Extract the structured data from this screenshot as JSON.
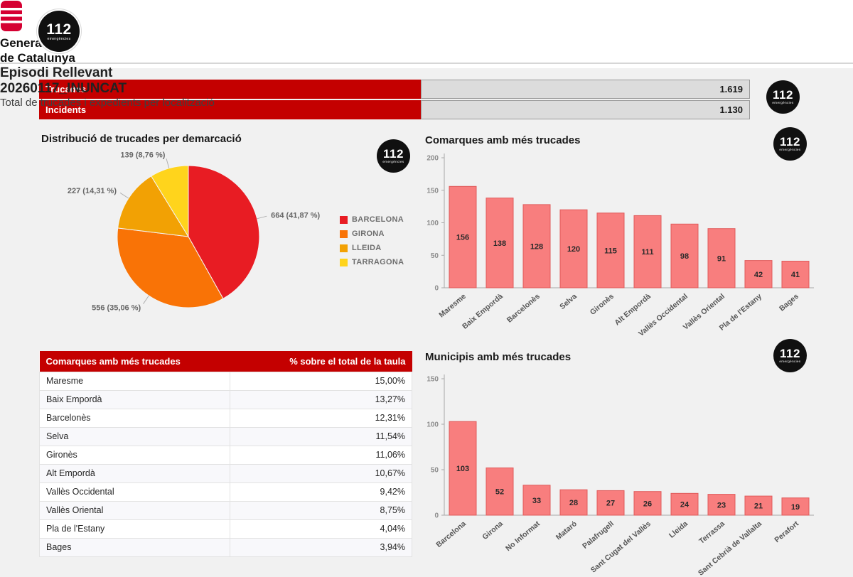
{
  "logo": {
    "number": "112",
    "caption": "emergències"
  },
  "header": {
    "org_line1": "Generalitat",
    "org_line2": "de Catalunya",
    "title": "Episodi Rellevant",
    "episode_code": "20260117_INUNCAT",
    "subtitle": "Total de trucades i expedients per localització"
  },
  "summary": {
    "rows": [
      {
        "label": "Trucades",
        "value": "1.619"
      },
      {
        "label": "Incidents",
        "value": "1.130"
      }
    ]
  },
  "chart_data": [
    {
      "type": "pie",
      "title": "Distribució de trucades per demarcació",
      "labels": [
        "BARCELONA",
        "GIRONA",
        "LLEIDA",
        "TARRAGONA"
      ],
      "values": [
        664,
        556,
        227,
        139
      ],
      "data_labels": [
        "664 (41,87 %)",
        "556 (35,06 %)",
        "227 (14,31 %)",
        "139 (8,76 %)"
      ],
      "colors": [
        "#e81c23",
        "#f97306",
        "#f2a104",
        "#ffd41c"
      ],
      "legend_position": "right"
    },
    {
      "type": "bar",
      "title": "Comarques amb més trucades",
      "categories": [
        "Maresme",
        "Baix Empordà",
        "Barcelonès",
        "Selva",
        "Gironès",
        "Alt Empordà",
        "Vallès Occidental",
        "Vallès Oriental",
        "Pla de l'Estany",
        "Bages"
      ],
      "values": [
        156,
        138,
        128,
        120,
        115,
        111,
        98,
        91,
        42,
        41
      ],
      "ylim": [
        0,
        200
      ],
      "yticks": [
        0,
        50,
        100,
        150,
        200
      ],
      "grid": false
    },
    {
      "type": "bar",
      "title": "Municipis amb més trucades",
      "categories": [
        "Barcelona",
        "Girona",
        "No Informat",
        "Mataró",
        "Palafrugell",
        "Sant Cugat del Vallès",
        "Lleida",
        "Terrassa",
        "Sant Cebrià de Vallalta",
        "Perafort"
      ],
      "values": [
        103,
        52,
        33,
        28,
        27,
        26,
        24,
        23,
        21,
        19
      ],
      "ylim": [
        0,
        150
      ],
      "yticks": [
        0,
        50,
        100,
        150
      ],
      "grid": false
    }
  ],
  "table": {
    "headers": [
      "Comarques amb més trucades",
      "% sobre el total de la taula"
    ],
    "rows": [
      [
        "Maresme",
        "15,00%"
      ],
      [
        "Baix Empordà",
        "13,27%"
      ],
      [
        "Barcelonès",
        "12,31%"
      ],
      [
        "Selva",
        "11,54%"
      ],
      [
        "Gironès",
        "11,06%"
      ],
      [
        "Alt Empordà",
        "10,67%"
      ],
      [
        "Vallès Occidental",
        "9,42%"
      ],
      [
        "Vallès Oriental",
        "8,75%"
      ],
      [
        "Pla de l'Estany",
        "4,04%"
      ],
      [
        "Bages",
        "3,94%"
      ]
    ]
  },
  "colors": {
    "accent_red": "#c40000",
    "bar_fill": "#f87e7e",
    "bar_border": "#e05a5a",
    "summary_track": "#dcdcdc"
  }
}
